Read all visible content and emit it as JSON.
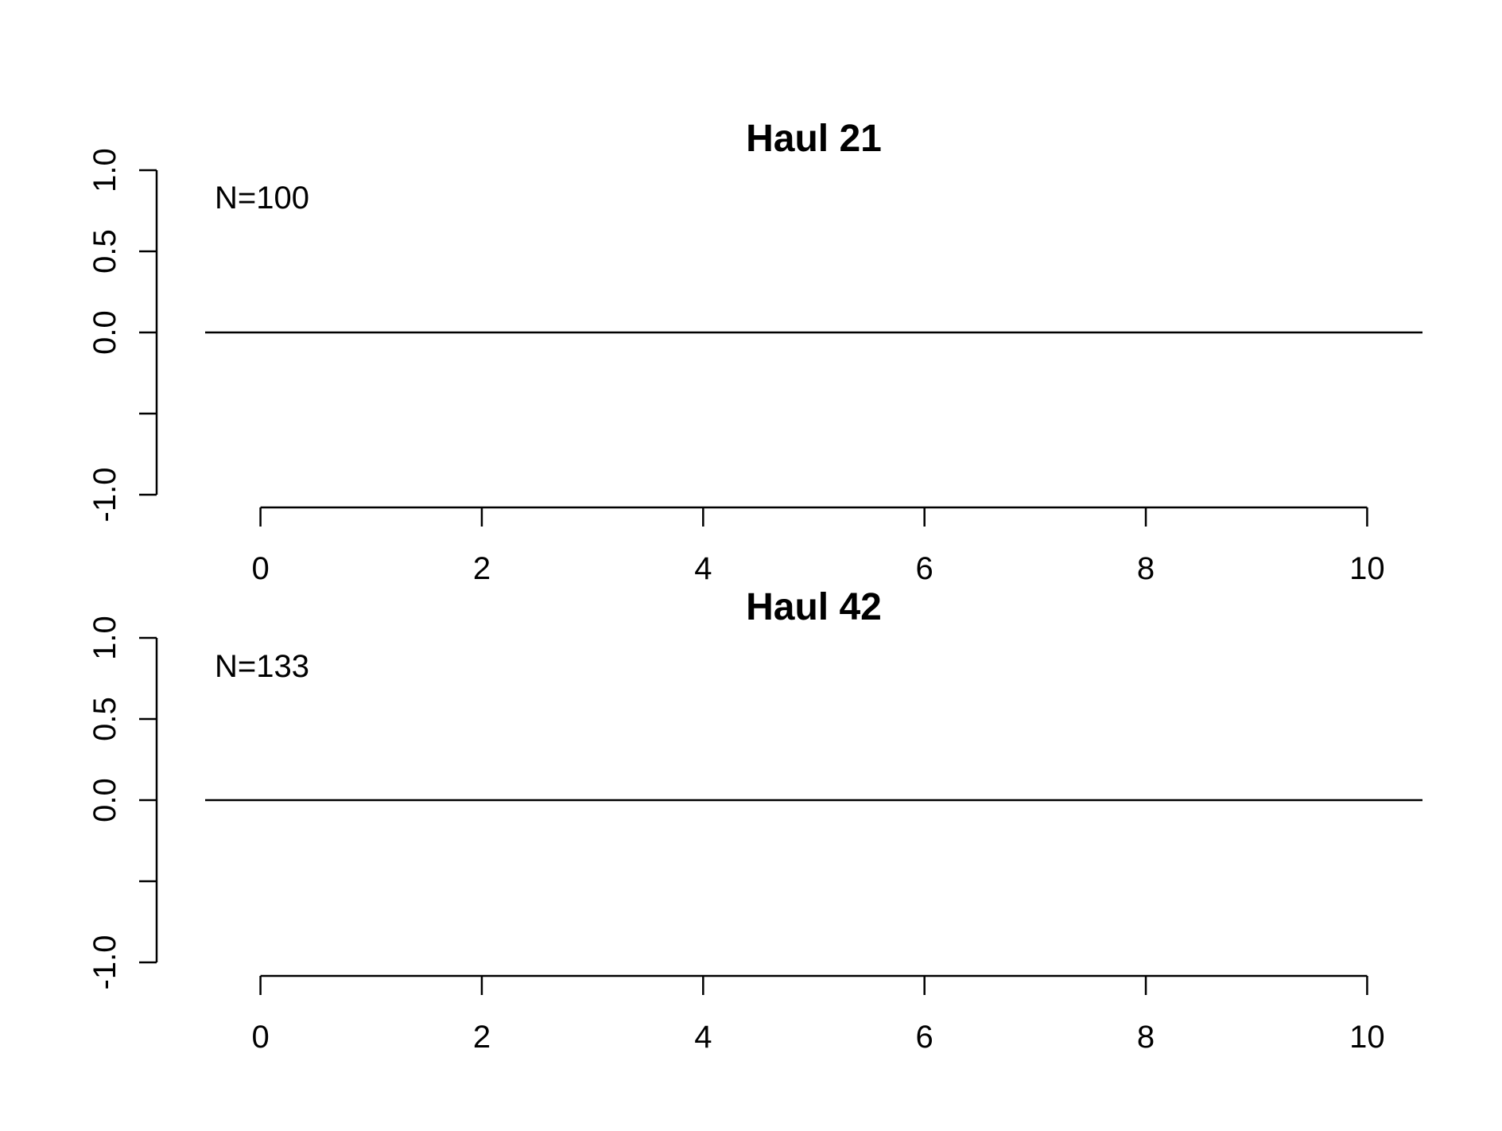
{
  "chart_data": [
    {
      "type": "line",
      "title": "Haul 21",
      "xlabel": "",
      "ylabel": "",
      "xlim": [
        -0.5,
        10.5
      ],
      "ylim": [
        -1.0,
        1.0
      ],
      "x_ticks": [
        0,
        2,
        4,
        6,
        8,
        10
      ],
      "x_tick_labels": [
        "0",
        "2",
        "4",
        "6",
        "8",
        "10"
      ],
      "y_ticks": [
        -1.0,
        -0.5,
        0.0,
        0.5,
        1.0
      ],
      "y_tick_labels": [
        "-1.0",
        "",
        "0.0",
        "0.5",
        "1.0"
      ],
      "annotation": "N=100",
      "grid": false,
      "series": [
        {
          "x": [
            -0.5,
            10.5
          ],
          "y": [
            0,
            0
          ],
          "color": "#000000"
        }
      ]
    },
    {
      "type": "line",
      "title": "Haul 42",
      "xlabel": "",
      "ylabel": "",
      "xlim": [
        -0.5,
        10.5
      ],
      "ylim": [
        -1.0,
        1.0
      ],
      "x_ticks": [
        0,
        2,
        4,
        6,
        8,
        10
      ],
      "x_tick_labels": [
        "0",
        "2",
        "4",
        "6",
        "8",
        "10"
      ],
      "y_ticks": [
        -1.0,
        -0.5,
        0.0,
        0.5,
        1.0
      ],
      "y_tick_labels": [
        "-1.0",
        "",
        "0.0",
        "0.5",
        "1.0"
      ],
      "annotation": "N=133",
      "grid": false,
      "series": [
        {
          "x": [
            -0.5,
            10.5
          ],
          "y": [
            0,
            0
          ],
          "color": "#000000"
        }
      ]
    }
  ]
}
